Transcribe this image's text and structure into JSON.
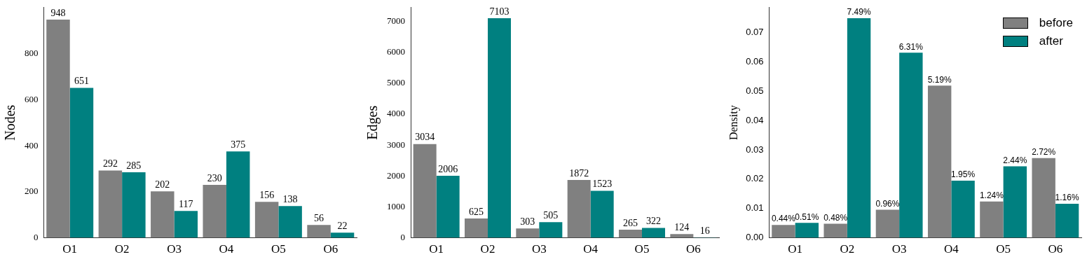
{
  "chart_data": [
    {
      "type": "bar",
      "ylabel": "Nodes",
      "categories": [
        "O1",
        "O2",
        "O3",
        "O4",
        "O5",
        "O6"
      ],
      "ylim": [
        0,
        1000
      ],
      "yticks": [
        0,
        200,
        400,
        600,
        800
      ],
      "data_labels": true,
      "legend": false,
      "series": [
        {
          "color": "#808080",
          "values": [
            948,
            292,
            202,
            230,
            156,
            56
          ]
        },
        {
          "color": "#008080",
          "values": [
            651,
            285,
            117,
            375,
            138,
            22
          ]
        }
      ]
    },
    {
      "type": "bar",
      "ylabel": "Edges",
      "categories": [
        "O1",
        "O2",
        "O3",
        "O4",
        "O5",
        "O6"
      ],
      "ylim": [
        0,
        7450
      ],
      "yticks": [
        0,
        1000,
        2000,
        3000,
        4000,
        5000,
        6000,
        7000
      ],
      "data_labels": true,
      "legend": false,
      "series": [
        {
          "color": "#808080",
          "values": [
            3034,
            625,
            303,
            1872,
            265,
            124
          ]
        },
        {
          "color": "#008080",
          "values": [
            2006,
            7103,
            505,
            1523,
            322,
            16
          ]
        }
      ]
    },
    {
      "type": "bar",
      "ylabel": "Density",
      "categories": [
        "O1",
        "O2",
        "O3",
        "O4",
        "O5",
        "O6"
      ],
      "ylim": [
        0,
        0.0785
      ],
      "yticks": [
        {
          "value": 0,
          "label": "0.00"
        },
        {
          "value": 0.01,
          "label": "0.01"
        },
        {
          "value": 0.02,
          "label": "0.02"
        },
        {
          "value": 0.03,
          "label": "0.03"
        },
        {
          "value": 0.04,
          "label": "0.04"
        },
        {
          "value": 0.05,
          "label": "0.05"
        },
        {
          "value": 0.06,
          "label": "0.06"
        },
        {
          "value": 0.07,
          "label": "0.07"
        }
      ],
      "legend": "top right",
      "series": [
        {
          "name": "before",
          "color": "#808080",
          "values": [
            0.0044,
            0.0048,
            0.0096,
            0.0519,
            0.0124,
            0.0272
          ],
          "value_labels": [
            "0.44%",
            "0.48%",
            "0.96%",
            "5.19%",
            "1.24%",
            "2.72%"
          ]
        },
        {
          "name": "after",
          "color": "#008080",
          "values": [
            0.0051,
            0.0749,
            0.0631,
            0.0195,
            0.0244,
            0.0116
          ],
          "value_labels": [
            "0.51%",
            "7.49%",
            "6.31%",
            "1.95%",
            "2.44%",
            "1.16%"
          ]
        }
      ]
    }
  ]
}
